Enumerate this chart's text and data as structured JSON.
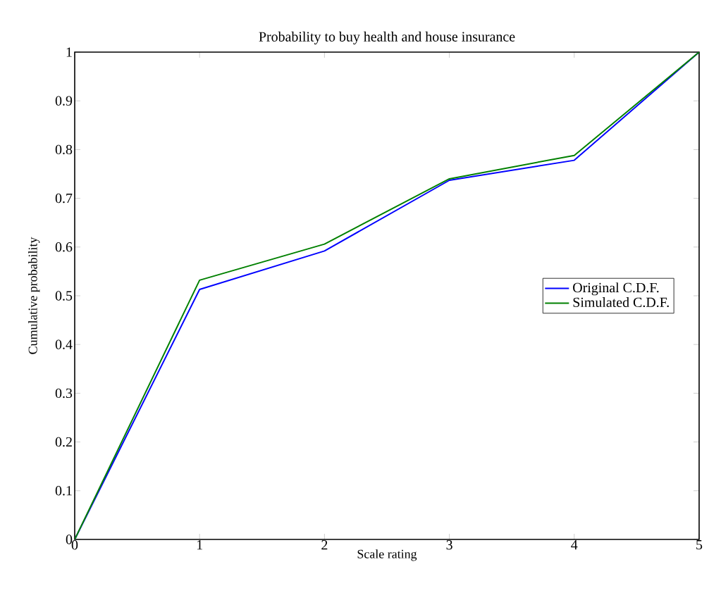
{
  "chart_data": {
    "type": "line",
    "title": "Probability to buy health and house insurance",
    "xlabel": "Scale rating",
    "ylabel": "Cumulative probability",
    "x": [
      0,
      1,
      2,
      3,
      4,
      5
    ],
    "series": [
      {
        "name": "Original C.D.F.",
        "color": "#0000ff",
        "values": [
          0,
          0.513,
          0.592,
          0.737,
          0.778,
          1
        ]
      },
      {
        "name": "Simulated C.D.F.",
        "color": "#008000",
        "values": [
          0,
          0.532,
          0.606,
          0.74,
          0.788,
          1
        ]
      }
    ],
    "xlim": [
      0,
      5
    ],
    "ylim": [
      0,
      1
    ],
    "xticks": [
      0,
      1,
      2,
      3,
      4,
      5
    ],
    "yticks": [
      0,
      0.1,
      0.2,
      0.3,
      0.4,
      0.5,
      0.6,
      0.7,
      0.8,
      0.9,
      1
    ],
    "grid": false,
    "legend": "right",
    "marker": "none",
    "line_style": "solid"
  }
}
